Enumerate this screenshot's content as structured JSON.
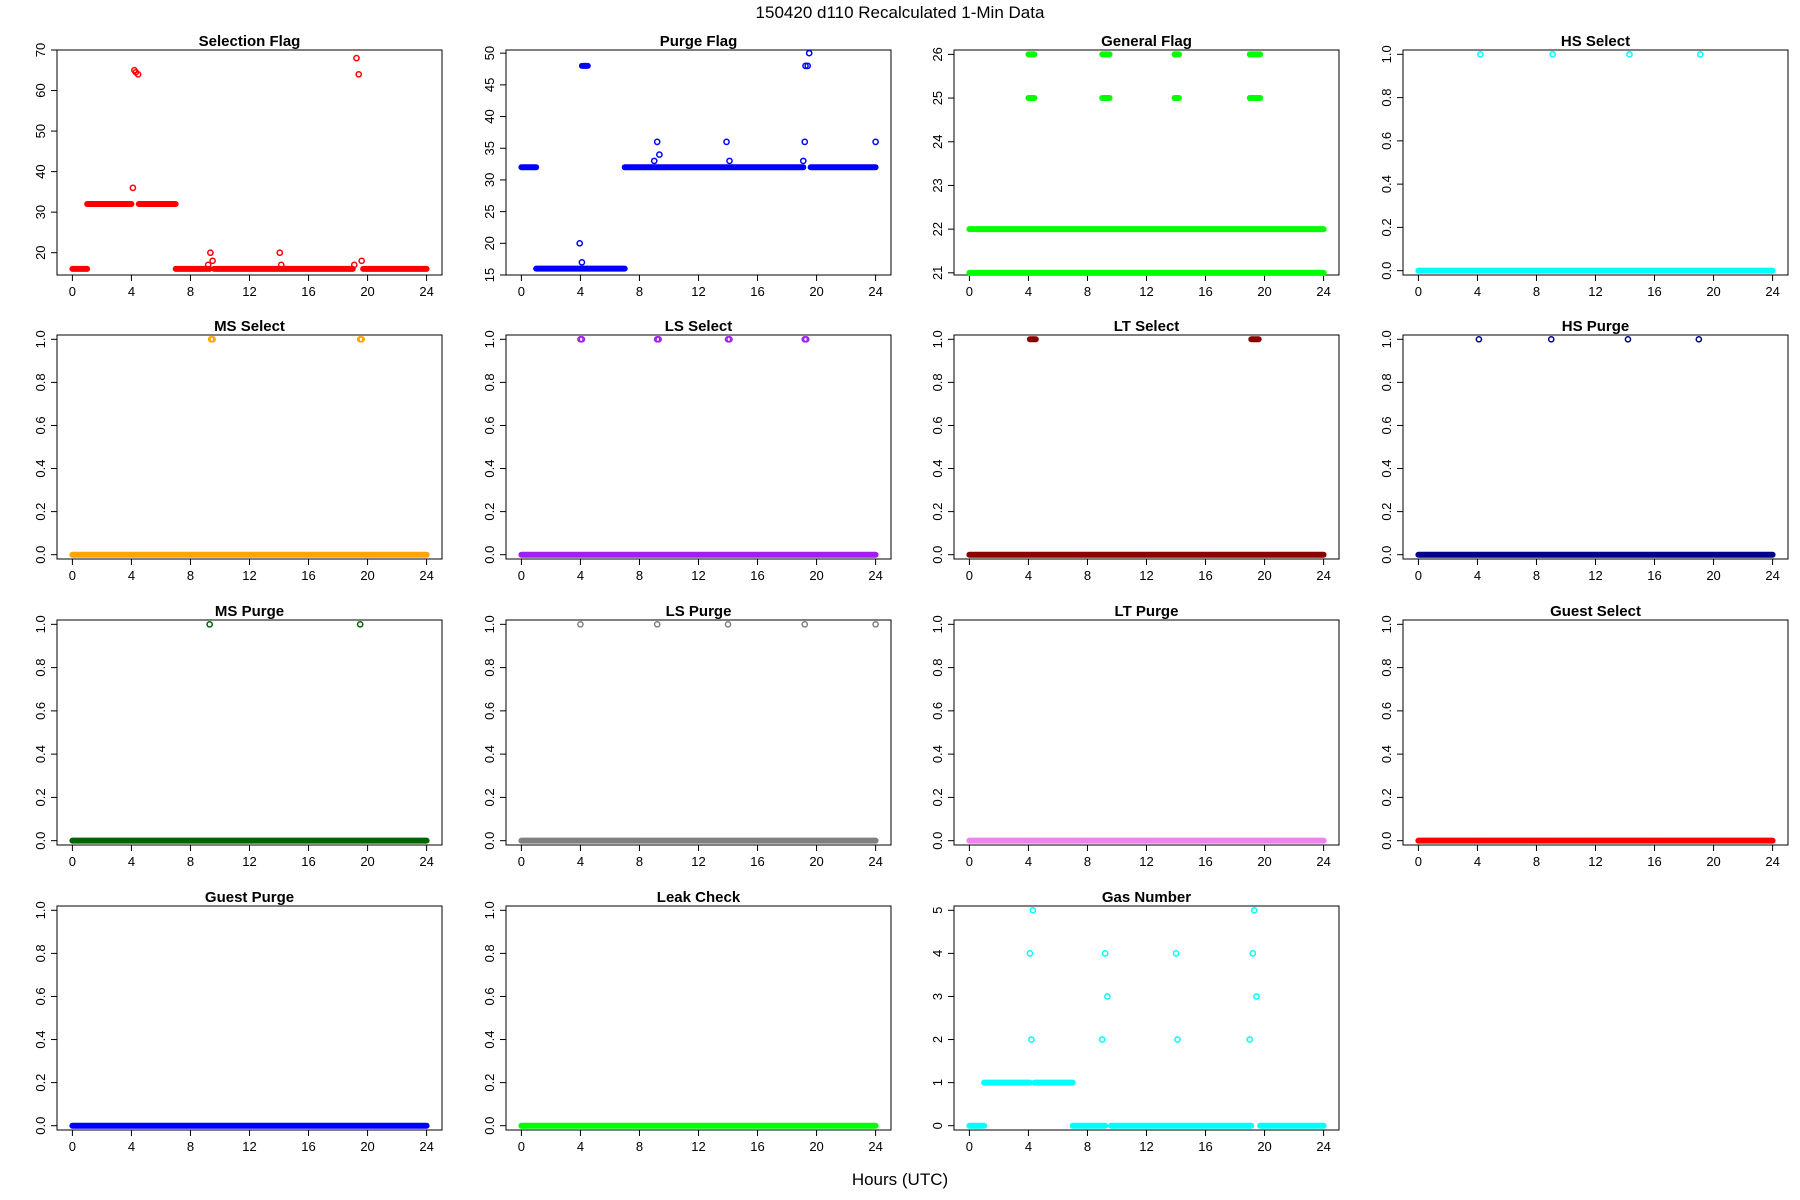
{
  "figure": {
    "title": "150420   d110   Recalculated 1-Min Data",
    "xlabel": "Hours (UTC)"
  },
  "chart_data": [
    {
      "type": "scatter",
      "title": "Selection Flag",
      "color": "#ff0000",
      "xlim": [
        0,
        24
      ],
      "ylim": [
        14.5,
        70
      ],
      "yticks": [
        20,
        30,
        40,
        50,
        60,
        70
      ],
      "xticks": [
        0,
        4,
        8,
        12,
        16,
        20,
        24
      ],
      "segments": [
        {
          "x0": 0.0,
          "x1": 1.0,
          "y": 16
        },
        {
          "x0": 1.0,
          "x1": 4.0,
          "y": 32
        },
        {
          "x0": 4.5,
          "x1": 7.0,
          "y": 32
        },
        {
          "x0": 7.0,
          "x1": 9.3,
          "y": 16
        },
        {
          "x0": 9.6,
          "x1": 19.0,
          "y": 16
        },
        {
          "x0": 19.7,
          "x1": 24.0,
          "y": 16
        }
      ],
      "points": [
        [
          4.1,
          36
        ],
        [
          4.2,
          65
        ],
        [
          4.3,
          64.5
        ],
        [
          4.45,
          64
        ],
        [
          9.2,
          17
        ],
        [
          9.35,
          20
        ],
        [
          9.5,
          18
        ],
        [
          14.05,
          20
        ],
        [
          14.15,
          17
        ],
        [
          19.1,
          17
        ],
        [
          19.25,
          68
        ],
        [
          19.4,
          64
        ],
        [
          19.6,
          18
        ]
      ]
    },
    {
      "type": "scatter",
      "title": "Purge Flag",
      "color": "#0000ff",
      "xlim": [
        0,
        24
      ],
      "ylim": [
        15,
        50.5
      ],
      "yticks": [
        15,
        20,
        25,
        30,
        35,
        40,
        45,
        50
      ],
      "xticks": [
        0,
        4,
        8,
        12,
        16,
        20,
        24
      ],
      "segments": [
        {
          "x0": 0.0,
          "x1": 1.0,
          "y": 32
        },
        {
          "x0": 1.0,
          "x1": 7.0,
          "y": 16
        },
        {
          "x0": 4.1,
          "x1": 4.5,
          "y": 48
        },
        {
          "x0": 7.0,
          "x1": 19.1,
          "y": 32
        },
        {
          "x0": 19.6,
          "x1": 24.0,
          "y": 32
        }
      ],
      "points": [
        [
          3.95,
          20
        ],
        [
          4.1,
          17
        ],
        [
          9.0,
          33
        ],
        [
          9.2,
          36
        ],
        [
          9.35,
          34
        ],
        [
          13.9,
          36
        ],
        [
          14.1,
          33
        ],
        [
          19.1,
          33
        ],
        [
          19.2,
          36
        ],
        [
          19.25,
          48
        ],
        [
          19.4,
          48
        ],
        [
          19.5,
          50
        ],
        [
          24.0,
          36
        ]
      ]
    },
    {
      "type": "scatter",
      "title": "General Flag",
      "color": "#00ff00",
      "xlim": [
        0,
        24
      ],
      "ylim": [
        20.95,
        26.1
      ],
      "yticks": [
        21,
        22,
        23,
        24,
        25,
        26
      ],
      "xticks": [
        0,
        4,
        8,
        12,
        16,
        20,
        24
      ],
      "segments": [
        {
          "x0": 0.0,
          "x1": 24.0,
          "y": 21
        },
        {
          "x0": 0.0,
          "x1": 24.0,
          "y": 22
        },
        {
          "x0": 4.0,
          "x1": 4.4,
          "y": 25
        },
        {
          "x0": 4.0,
          "x1": 4.4,
          "y": 26
        },
        {
          "x0": 9.0,
          "x1": 9.5,
          "y": 25
        },
        {
          "x0": 9.0,
          "x1": 9.5,
          "y": 26
        },
        {
          "x0": 13.9,
          "x1": 14.2,
          "y": 25
        },
        {
          "x0": 13.9,
          "x1": 14.2,
          "y": 26
        },
        {
          "x0": 19.0,
          "x1": 19.7,
          "y": 25
        },
        {
          "x0": 19.0,
          "x1": 19.7,
          "y": 26
        }
      ],
      "points": []
    },
    {
      "type": "scatter",
      "title": "HS Select",
      "color": "#00ffff",
      "xlim": [
        0,
        24
      ],
      "ylim": [
        -0.02,
        1.02
      ],
      "yticks": [
        0.0,
        0.2,
        0.4,
        0.6,
        0.8,
        1.0
      ],
      "xticks": [
        0,
        4,
        8,
        12,
        16,
        20,
        24
      ],
      "segments": [
        {
          "x0": 0.0,
          "x1": 24.0,
          "y": 0
        }
      ],
      "points": [
        [
          4.2,
          1
        ],
        [
          9.1,
          1
        ],
        [
          14.3,
          1
        ],
        [
          19.1,
          1
        ]
      ]
    },
    {
      "type": "scatter",
      "title": "MS Select",
      "color": "#ffa500",
      "xlim": [
        0,
        24
      ],
      "ylim": [
        -0.02,
        1.02
      ],
      "yticks": [
        0.0,
        0.2,
        0.4,
        0.6,
        0.8,
        1.0
      ],
      "xticks": [
        0,
        4,
        8,
        12,
        16,
        20,
        24
      ],
      "segments": [
        {
          "x0": 0.0,
          "x1": 24.0,
          "y": 0
        }
      ],
      "points": [
        [
          9.4,
          1
        ],
        [
          9.5,
          1
        ],
        [
          19.5,
          1
        ],
        [
          19.6,
          1
        ]
      ]
    },
    {
      "type": "scatter",
      "title": "LS Select",
      "color": "#a020f0",
      "xlim": [
        0,
        24
      ],
      "ylim": [
        -0.02,
        1.02
      ],
      "yticks": [
        0.0,
        0.2,
        0.4,
        0.6,
        0.8,
        1.0
      ],
      "xticks": [
        0,
        4,
        8,
        12,
        16,
        20,
        24
      ],
      "segments": [
        {
          "x0": 0.0,
          "x1": 24.0,
          "y": 0
        }
      ],
      "points": [
        [
          4.0,
          1
        ],
        [
          4.1,
          1
        ],
        [
          9.2,
          1
        ],
        [
          9.3,
          1
        ],
        [
          14.0,
          1
        ],
        [
          14.1,
          1
        ],
        [
          19.2,
          1
        ],
        [
          19.3,
          1
        ]
      ]
    },
    {
      "type": "scatter",
      "title": "LT Select",
      "color": "#8b0000",
      "xlim": [
        0,
        24
      ],
      "ylim": [
        -0.02,
        1.02
      ],
      "yticks": [
        0.0,
        0.2,
        0.4,
        0.6,
        0.8,
        1.0
      ],
      "xticks": [
        0,
        4,
        8,
        12,
        16,
        20,
        24
      ],
      "segments": [
        {
          "x0": 0.0,
          "x1": 24.0,
          "y": 0
        },
        {
          "x0": 4.1,
          "x1": 4.5,
          "y": 1
        },
        {
          "x0": 19.1,
          "x1": 19.6,
          "y": 1
        }
      ],
      "points": []
    },
    {
      "type": "scatter",
      "title": "HS Purge",
      "color": "#00008b",
      "xlim": [
        0,
        24
      ],
      "ylim": [
        -0.02,
        1.02
      ],
      "yticks": [
        0.0,
        0.2,
        0.4,
        0.6,
        0.8,
        1.0
      ],
      "xticks": [
        0,
        4,
        8,
        12,
        16,
        20,
        24
      ],
      "segments": [
        {
          "x0": 0.0,
          "x1": 24.0,
          "y": 0
        }
      ],
      "points": [
        [
          4.1,
          1
        ],
        [
          9.0,
          1
        ],
        [
          14.2,
          1
        ],
        [
          19.0,
          1
        ]
      ]
    },
    {
      "type": "scatter",
      "title": "MS Purge",
      "color": "#006400",
      "xlim": [
        0,
        24
      ],
      "ylim": [
        -0.02,
        1.02
      ],
      "yticks": [
        0.0,
        0.2,
        0.4,
        0.6,
        0.8,
        1.0
      ],
      "xticks": [
        0,
        4,
        8,
        12,
        16,
        20,
        24
      ],
      "segments": [
        {
          "x0": 0.0,
          "x1": 24.0,
          "y": 0
        }
      ],
      "points": [
        [
          9.3,
          1
        ],
        [
          19.5,
          1
        ]
      ]
    },
    {
      "type": "scatter",
      "title": "LS Purge",
      "color": "#808080",
      "xlim": [
        0,
        24
      ],
      "ylim": [
        -0.02,
        1.02
      ],
      "yticks": [
        0.0,
        0.2,
        0.4,
        0.6,
        0.8,
        1.0
      ],
      "xticks": [
        0,
        4,
        8,
        12,
        16,
        20,
        24
      ],
      "segments": [
        {
          "x0": 0.0,
          "x1": 24.0,
          "y": 0
        }
      ],
      "points": [
        [
          4.0,
          1
        ],
        [
          9.2,
          1
        ],
        [
          14.0,
          1
        ],
        [
          19.2,
          1
        ],
        [
          24.0,
          1
        ]
      ]
    },
    {
      "type": "scatter",
      "title": "LT Purge",
      "color": "#ee82ee",
      "xlim": [
        0,
        24
      ],
      "ylim": [
        -0.02,
        1.02
      ],
      "yticks": [
        0.0,
        0.2,
        0.4,
        0.6,
        0.8,
        1.0
      ],
      "xticks": [
        0,
        4,
        8,
        12,
        16,
        20,
        24
      ],
      "segments": [
        {
          "x0": 0.0,
          "x1": 24.0,
          "y": 0
        }
      ],
      "points": []
    },
    {
      "type": "scatter",
      "title": "Guest Select",
      "color": "#ff0000",
      "xlim": [
        0,
        24
      ],
      "ylim": [
        -0.02,
        1.02
      ],
      "yticks": [
        0.0,
        0.2,
        0.4,
        0.6,
        0.8,
        1.0
      ],
      "xticks": [
        0,
        4,
        8,
        12,
        16,
        20,
        24
      ],
      "segments": [
        {
          "x0": 0.0,
          "x1": 24.0,
          "y": 0
        }
      ],
      "points": []
    },
    {
      "type": "scatter",
      "title": "Guest Purge",
      "color": "#0000ff",
      "xlim": [
        0,
        24
      ],
      "ylim": [
        -0.02,
        1.02
      ],
      "yticks": [
        0.0,
        0.2,
        0.4,
        0.6,
        0.8,
        1.0
      ],
      "xticks": [
        0,
        4,
        8,
        12,
        16,
        20,
        24
      ],
      "segments": [
        {
          "x0": 0.0,
          "x1": 24.0,
          "y": 0
        }
      ],
      "points": []
    },
    {
      "type": "scatter",
      "title": "Leak Check",
      "color": "#00ff00",
      "xlim": [
        0,
        24
      ],
      "ylim": [
        -0.02,
        1.02
      ],
      "yticks": [
        0.0,
        0.2,
        0.4,
        0.6,
        0.8,
        1.0
      ],
      "xticks": [
        0,
        4,
        8,
        12,
        16,
        20,
        24
      ],
      "segments": [
        {
          "x0": 0.0,
          "x1": 24.0,
          "y": 0
        }
      ],
      "points": []
    },
    {
      "type": "scatter",
      "title": "Gas Number",
      "color": "#00ffff",
      "xlim": [
        0,
        24
      ],
      "ylim": [
        -0.1,
        5.1
      ],
      "yticks": [
        0,
        1,
        2,
        3,
        4,
        5
      ],
      "xticks": [
        0,
        4,
        8,
        12,
        16,
        20,
        24
      ],
      "segments": [
        {
          "x0": 0.0,
          "x1": 1.0,
          "y": 0
        },
        {
          "x0": 1.0,
          "x1": 4.1,
          "y": 1
        },
        {
          "x0": 4.4,
          "x1": 7.0,
          "y": 1
        },
        {
          "x0": 7.0,
          "x1": 9.2,
          "y": 0
        },
        {
          "x0": 9.6,
          "x1": 19.1,
          "y": 0
        },
        {
          "x0": 19.7,
          "x1": 24.0,
          "y": 0
        }
      ],
      "points": [
        [
          4.1,
          4
        ],
        [
          4.2,
          2
        ],
        [
          4.3,
          5
        ],
        [
          9.0,
          2
        ],
        [
          9.2,
          4
        ],
        [
          9.35,
          3
        ],
        [
          14.0,
          4
        ],
        [
          14.1,
          2
        ],
        [
          19.0,
          2
        ],
        [
          19.2,
          4
        ],
        [
          19.3,
          5
        ],
        [
          19.45,
          3
        ]
      ]
    }
  ]
}
